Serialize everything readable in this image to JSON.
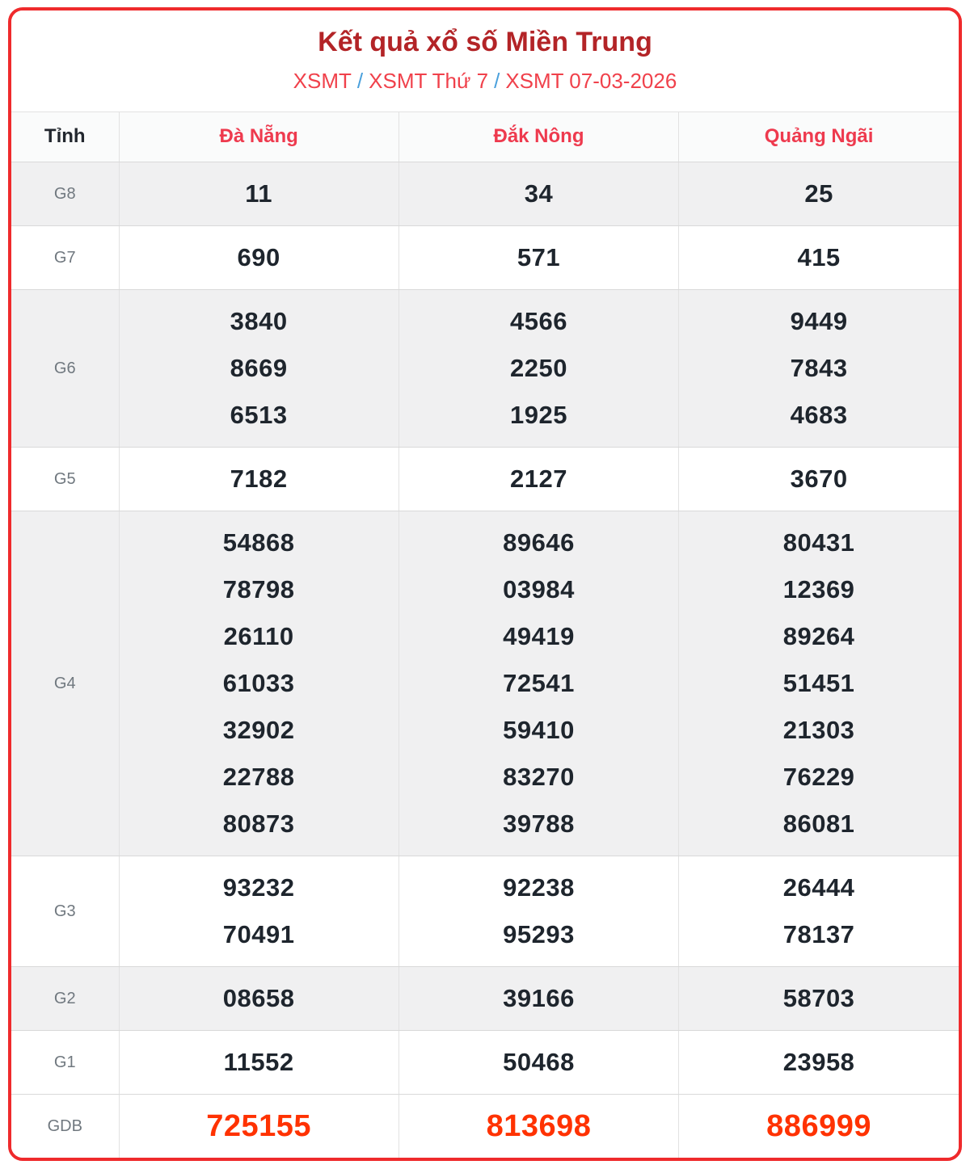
{
  "header": {
    "title": "Kết quả xổ số Miền Trung",
    "breadcrumb": [
      "XSMT",
      "XSMT Thứ 7",
      "XSMT 07-03-2026"
    ],
    "separator": "/"
  },
  "table": {
    "corner_label": "Tỉnh",
    "columns": [
      "Đà Nẵng",
      "Đắk Nông",
      "Quảng Ngãi"
    ],
    "rows": [
      {
        "label": "G8",
        "cells": [
          [
            "11"
          ],
          [
            "34"
          ],
          [
            "25"
          ]
        ]
      },
      {
        "label": "G7",
        "cells": [
          [
            "690"
          ],
          [
            "571"
          ],
          [
            "415"
          ]
        ]
      },
      {
        "label": "G6",
        "cells": [
          [
            "3840",
            "8669",
            "6513"
          ],
          [
            "4566",
            "2250",
            "1925"
          ],
          [
            "9449",
            "7843",
            "4683"
          ]
        ]
      },
      {
        "label": "G5",
        "cells": [
          [
            "7182"
          ],
          [
            "2127"
          ],
          [
            "3670"
          ]
        ]
      },
      {
        "label": "G4",
        "cells": [
          [
            "54868",
            "78798",
            "26110",
            "61033",
            "32902",
            "22788",
            "80873"
          ],
          [
            "89646",
            "03984",
            "49419",
            "72541",
            "59410",
            "83270",
            "39788"
          ],
          [
            "80431",
            "12369",
            "89264",
            "51451",
            "21303",
            "76229",
            "86081"
          ]
        ]
      },
      {
        "label": "G3",
        "cells": [
          [
            "93232",
            "70491"
          ],
          [
            "92238",
            "95293"
          ],
          [
            "26444",
            "78137"
          ]
        ]
      },
      {
        "label": "G2",
        "cells": [
          [
            "08658"
          ],
          [
            "39166"
          ],
          [
            "58703"
          ]
        ]
      },
      {
        "label": "G1",
        "cells": [
          [
            "11552"
          ],
          [
            "50468"
          ],
          [
            "23958"
          ]
        ]
      },
      {
        "label": "GDB",
        "cells": [
          [
            "725155"
          ],
          [
            "813698"
          ],
          [
            "886999"
          ]
        ],
        "highlight": true
      }
    ]
  },
  "colors": {
    "card_border": "#ef2a2c",
    "title_red": "#b32427",
    "breadcrumb_red": "#f0414b",
    "breadcrumb_slash_blue": "#4aa0dc",
    "province_header_red": "#ee3a4e",
    "number_dark": "#1e252d",
    "special_prize_red": "#ff3200",
    "row_shade_gray": "#f0f0f1",
    "label_gray": "#70787f"
  }
}
